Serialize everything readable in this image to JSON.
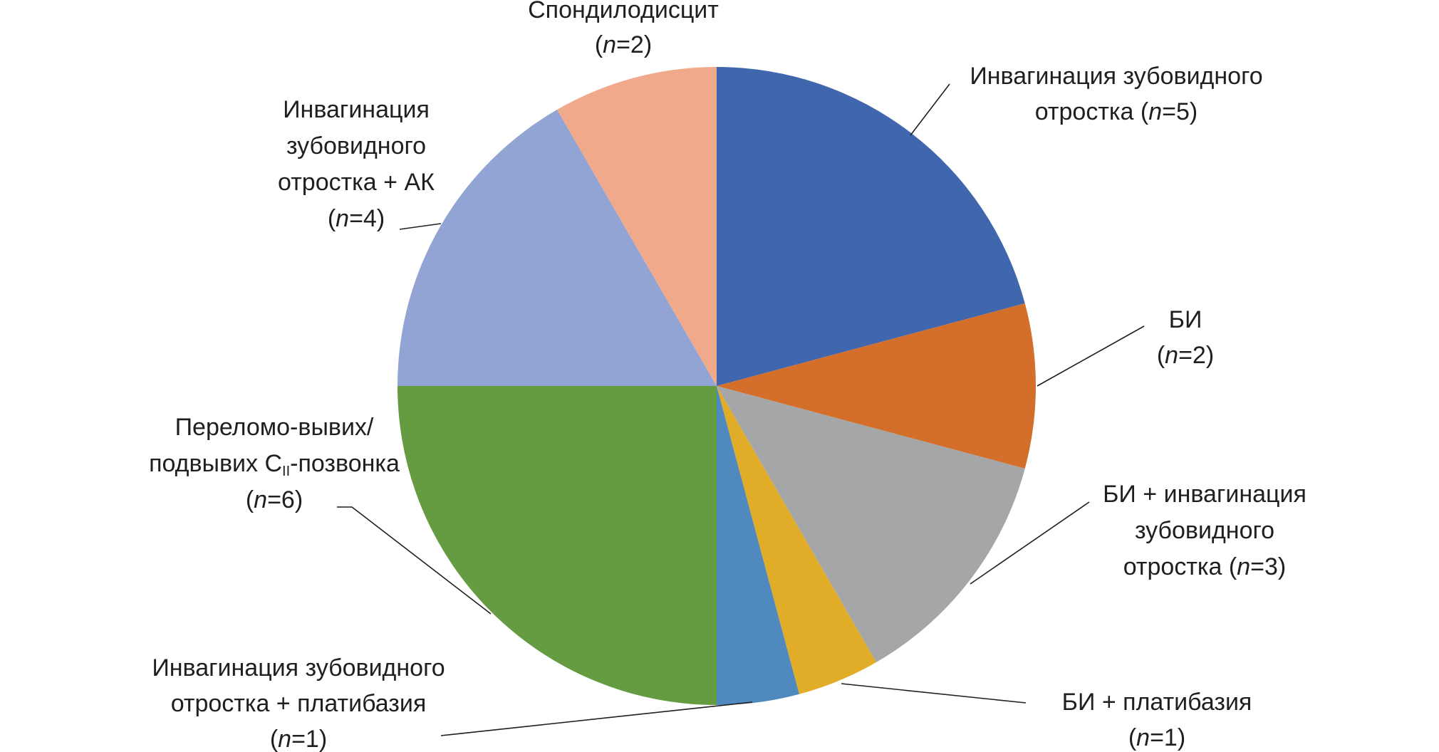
{
  "chart_data": {
    "type": "pie",
    "title": "",
    "start": "12 o'clock",
    "direction": "clockwise",
    "legend": "none",
    "slices": [
      {
        "id": "invag-zub",
        "value": 5,
        "color": "#4067AD",
        "label_lines": [
          [
            {
              "t": "Инвагинация зубовидного"
            }
          ],
          [
            {
              "t": "отростка ("
            },
            {
              "t": "n",
              "i": true
            },
            {
              "t": "=5)"
            }
          ]
        ]
      },
      {
        "id": "bi",
        "value": 2,
        "color": "#D36E2B",
        "label_lines": [
          [
            {
              "t": "БИ"
            }
          ],
          [
            {
              "t": "("
            },
            {
              "t": "n",
              "i": true
            },
            {
              "t": "=2)"
            }
          ]
        ]
      },
      {
        "id": "bi-invag",
        "value": 3,
        "color": "#A5A6A8",
        "label_lines": [
          [
            {
              "t": "БИ + инвагинация"
            }
          ],
          [
            {
              "t": "зубовидного"
            }
          ],
          [
            {
              "t": "отростка ("
            },
            {
              "t": "n",
              "i": true
            },
            {
              "t": "=3)"
            }
          ]
        ]
      },
      {
        "id": "bi-platib",
        "value": 1,
        "color": "#E1AC27",
        "label_lines": [
          [
            {
              "t": "БИ + платибазия"
            }
          ],
          [
            {
              "t": "("
            },
            {
              "t": "n",
              "i": true
            },
            {
              "t": "=1)"
            }
          ]
        ]
      },
      {
        "id": "invag-platib",
        "value": 1,
        "color": "#5089BE",
        "label_lines": [
          [
            {
              "t": "Инвагинация зубовидного"
            }
          ],
          [
            {
              "t": "отростка + платибазия"
            }
          ],
          [
            {
              "t": "("
            },
            {
              "t": "n",
              "i": true
            },
            {
              "t": "=1)"
            }
          ]
        ]
      },
      {
        "id": "perelomo",
        "value": 6,
        "color": "#659B41",
        "label_lines": [
          [
            {
              "t": "Переломо-вывих/"
            }
          ],
          [
            {
              "t": "подвывих C"
            },
            {
              "t": "II",
              "sub": true
            },
            {
              "t": "-позвонка"
            }
          ],
          [
            {
              "t": "("
            },
            {
              "t": "n",
              "i": true
            },
            {
              "t": "=6)"
            }
          ]
        ]
      },
      {
        "id": "invag-ak",
        "value": 4,
        "color": "#91A4D3",
        "label_lines": [
          [
            {
              "t": "Инвагинация"
            }
          ],
          [
            {
              "t": "зубовидного"
            }
          ],
          [
            {
              "t": "отростка + АК"
            }
          ],
          [
            {
              "t": "("
            },
            {
              "t": "n",
              "i": true
            },
            {
              "t": "=4)"
            }
          ]
        ]
      },
      {
        "id": "spondilo",
        "value": 2,
        "color": "#F0A98A",
        "label_lines": [
          [
            {
              "t": "Спондилодисцит"
            }
          ],
          [
            {
              "t": "("
            },
            {
              "t": "n",
              "i": true
            },
            {
              "t": "=2)"
            }
          ]
        ]
      }
    ]
  }
}
